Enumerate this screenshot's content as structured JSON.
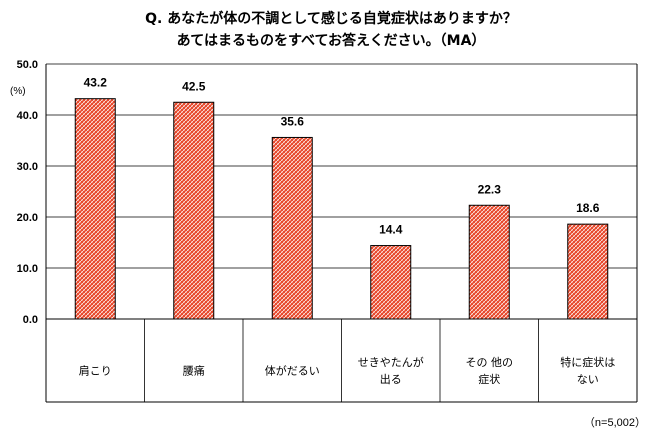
{
  "question": {
    "line1": "Q. あなたが体の不調として感じる自覚症状はありますか？",
    "line2": "あてはまるものをすべてお答えください。（MA）"
  },
  "footnote": "（n=5,002）",
  "chart_data": {
    "type": "bar",
    "unit": "(%)",
    "ylim": [
      0,
      50
    ],
    "yticks": [
      "0.0",
      "10.0",
      "20.0",
      "30.0",
      "40.0",
      "50.0"
    ],
    "grid": true,
    "bar_color": "#e8472a",
    "categories": [
      [
        "肩こり"
      ],
      [
        "腰痛"
      ],
      [
        "体がだるい"
      ],
      [
        "せきやたんが",
        "出る"
      ],
      [
        "その 他の",
        "症状"
      ],
      [
        "特に症状は",
        "ない"
      ]
    ],
    "values": [
      43.2,
      42.5,
      35.6,
      14.4,
      22.3,
      18.6
    ],
    "value_labels": [
      "43.2",
      "42.5",
      "35.6",
      "14.4",
      "22.3",
      "18.6"
    ]
  }
}
